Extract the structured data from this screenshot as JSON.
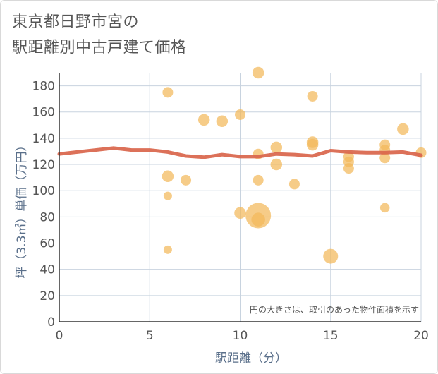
{
  "title_lines": [
    "東京都日野市宮の",
    "駅距離別中古戸建て価格"
  ],
  "colors": {
    "bubble": "#f3b95a",
    "line": "#d9654b",
    "grid": "#c8d3df",
    "axis": "#333333"
  },
  "chart_data": {
    "type": "scatter",
    "title": "東京都日野市宮の駅距離別中古戸建て価格",
    "xlabel": "駅距離（分）",
    "ylabel": "坪（3.3㎡）単価（万円）",
    "xlim": [
      0,
      20
    ],
    "ylim": [
      0,
      190
    ],
    "xticks": [
      0,
      5,
      10,
      15,
      20
    ],
    "yticks": [
      0,
      20,
      40,
      60,
      80,
      100,
      120,
      140,
      160,
      180
    ],
    "note": "円の大きさは、取引のあった物件面積を示す",
    "points": [
      {
        "x": 6,
        "y": 175,
        "size": 1
      },
      {
        "x": 6,
        "y": 111,
        "size": 1.1
      },
      {
        "x": 6,
        "y": 96,
        "size": 0.8
      },
      {
        "x": 6,
        "y": 55,
        "size": 0.8
      },
      {
        "x": 7,
        "y": 108,
        "size": 1
      },
      {
        "x": 8,
        "y": 154,
        "size": 1.1
      },
      {
        "x": 9,
        "y": 153,
        "size": 1.1
      },
      {
        "x": 10,
        "y": 158,
        "size": 1
      },
      {
        "x": 10,
        "y": 83,
        "size": 1.1
      },
      {
        "x": 11,
        "y": 190,
        "size": 1.1
      },
      {
        "x": 11,
        "y": 128,
        "size": 1
      },
      {
        "x": 11,
        "y": 108,
        "size": 1
      },
      {
        "x": 11,
        "y": 81,
        "size": 2.4
      },
      {
        "x": 11,
        "y": 78,
        "size": 1.3
      },
      {
        "x": 12,
        "y": 133,
        "size": 1.1
      },
      {
        "x": 12,
        "y": 120,
        "size": 1.1
      },
      {
        "x": 13,
        "y": 105,
        "size": 1
      },
      {
        "x": 14,
        "y": 172,
        "size": 1
      },
      {
        "x": 14,
        "y": 137,
        "size": 1.1
      },
      {
        "x": 14,
        "y": 135,
        "size": 1.1
      },
      {
        "x": 15,
        "y": 50,
        "size": 1.4
      },
      {
        "x": 16,
        "y": 126,
        "size": 1
      },
      {
        "x": 16,
        "y": 122,
        "size": 1
      },
      {
        "x": 16,
        "y": 117,
        "size": 1
      },
      {
        "x": 18,
        "y": 135,
        "size": 1
      },
      {
        "x": 18,
        "y": 131,
        "size": 1
      },
      {
        "x": 18,
        "y": 125,
        "size": 1
      },
      {
        "x": 18,
        "y": 87,
        "size": 0.9
      },
      {
        "x": 19,
        "y": 147,
        "size": 1.1
      },
      {
        "x": 20,
        "y": 129,
        "size": 1
      }
    ],
    "trend": [
      {
        "x": 0,
        "y": 128
      },
      {
        "x": 1,
        "y": 129.5
      },
      {
        "x": 2,
        "y": 131
      },
      {
        "x": 3,
        "y": 132.5
      },
      {
        "x": 4,
        "y": 131
      },
      {
        "x": 5,
        "y": 131
      },
      {
        "x": 6,
        "y": 129.5
      },
      {
        "x": 7,
        "y": 126.5
      },
      {
        "x": 8,
        "y": 125.5
      },
      {
        "x": 9,
        "y": 127.5
      },
      {
        "x": 10,
        "y": 126
      },
      {
        "x": 11,
        "y": 126
      },
      {
        "x": 12,
        "y": 128
      },
      {
        "x": 13,
        "y": 127.5
      },
      {
        "x": 14,
        "y": 126.5
      },
      {
        "x": 15,
        "y": 130.5
      },
      {
        "x": 16,
        "y": 129.5
      },
      {
        "x": 17,
        "y": 129
      },
      {
        "x": 18,
        "y": 129
      },
      {
        "x": 19,
        "y": 129.5
      },
      {
        "x": 20,
        "y": 127
      }
    ]
  }
}
